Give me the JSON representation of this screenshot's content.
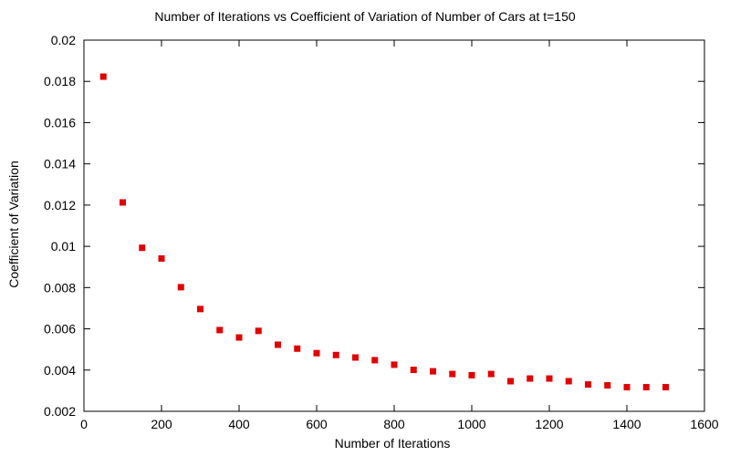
{
  "chart_data": {
    "type": "scatter",
    "title": "Number of Iterations vs Coefficient of Variation of Number of Cars at t=150",
    "xlabel": "Number of Iterations",
    "ylabel": "Coefficient of Variation",
    "xlim": [
      0,
      1600
    ],
    "ylim": [
      0.002,
      0.02
    ],
    "xticks": [
      0,
      200,
      400,
      600,
      800,
      1000,
      1200,
      1400,
      1600
    ],
    "yticks": [
      0.002,
      0.004,
      0.006,
      0.008,
      0.01,
      0.012,
      0.014,
      0.016,
      0.018,
      0.02
    ],
    "xtick_labels": [
      "0",
      "200",
      "400",
      "600",
      "800",
      "1000",
      "1200",
      "1400",
      "1600"
    ],
    "ytick_labels": [
      "0.002",
      "0.004",
      "0.006",
      "0.008",
      "0.01",
      "0.012",
      "0.014",
      "0.016",
      "0.018",
      "0.02"
    ],
    "grid": false,
    "marker": "square",
    "marker_color": "#e00000",
    "series": [
      {
        "x": [
          50,
          100,
          150,
          200,
          250,
          300,
          350,
          400,
          450,
          500,
          550,
          600,
          650,
          700,
          750,
          800,
          850,
          900,
          950,
          1000,
          1050,
          1100,
          1150,
          1200,
          1250,
          1300,
          1350,
          1400,
          1450,
          1500
        ],
        "y": [
          0.01823,
          0.01213,
          0.00993,
          0.00941,
          0.00802,
          0.00696,
          0.00594,
          0.00558,
          0.0059,
          0.00523,
          0.00504,
          0.00482,
          0.00473,
          0.00461,
          0.00448,
          0.00426,
          0.00401,
          0.00394,
          0.00381,
          0.00375,
          0.00381,
          0.00346,
          0.00359,
          0.00359,
          0.00346,
          0.0033,
          0.00326,
          0.00317,
          0.00317,
          0.00317
        ]
      }
    ]
  }
}
